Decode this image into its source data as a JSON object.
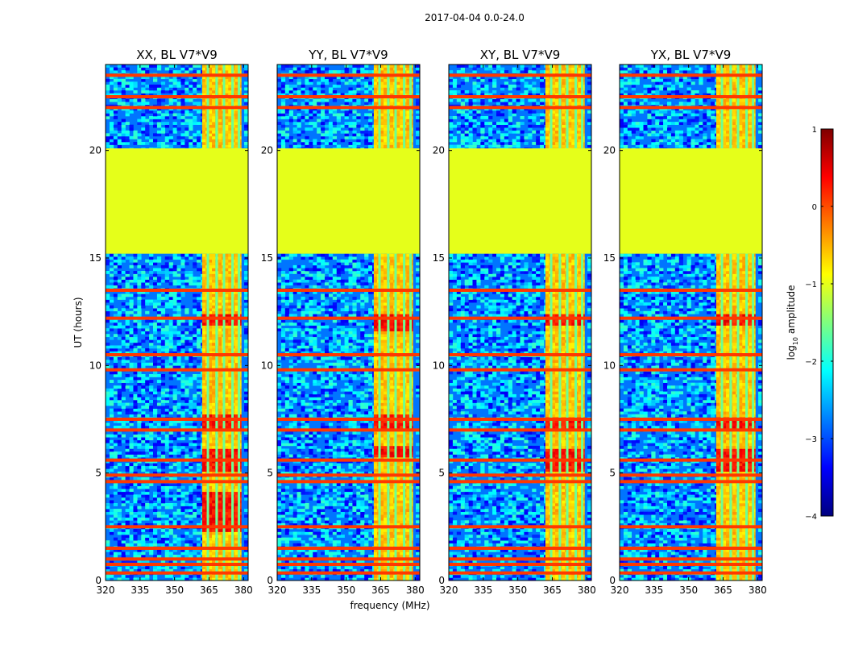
{
  "figure": {
    "suptitle": "2017-04-04 0.0-24.0",
    "xlabel": "frequency (MHz)",
    "ylabel": "UT (hours)"
  },
  "colorbar": {
    "label_prefix": "log",
    "label_sub": "10",
    "label_suffix": " amplitude",
    "ticks": [
      "1",
      "0",
      "−1",
      "−2",
      "−3",
      "−4"
    ],
    "range": [
      -4,
      1
    ],
    "colormap": "jet",
    "colors": [
      "#00007f",
      "#0000ff",
      "#007fff",
      "#00ffff",
      "#7fff7f",
      "#ffff00",
      "#ff7f00",
      "#ff0000",
      "#7f0000"
    ]
  },
  "chart_data": {
    "type": "heatmap",
    "xlim": [
      320,
      382
    ],
    "ylim": [
      0,
      24
    ],
    "xticks": [
      320,
      335,
      350,
      365,
      380
    ],
    "yticks": [
      0,
      5,
      10,
      15,
      20
    ],
    "gap_hours": [
      15.2,
      20.1
    ],
    "gap_value": -1.0,
    "background_value": -2.8,
    "active_band_mhz": [
      362,
      379
    ],
    "active_band_value": -0.6,
    "flagged_channels_mhz": [
      364.5,
      368.3,
      371.5,
      375.2,
      378.0
    ],
    "flagged_rows_hours": [
      0.35,
      0.75,
      1.0,
      1.5,
      2.5,
      4.6,
      4.9,
      5.6,
      7.0,
      7.5,
      9.8,
      10.5,
      12.2,
      13.5,
      22.0,
      22.5,
      23.5
    ],
    "panels": [
      {
        "title": "XX, BL V7*V9",
        "bright_hours": [
          [
            2.2,
            4.2
          ],
          [
            5.0,
            6.2
          ],
          [
            7.0,
            7.8
          ],
          [
            11.8,
            12.4
          ]
        ]
      },
      {
        "title": "YY, BL V7*V9",
        "bright_hours": [
          [
            5.7,
            6.3
          ],
          [
            7.0,
            7.8
          ],
          [
            11.5,
            12.5
          ]
        ]
      },
      {
        "title": "XY, BL V7*V9",
        "bright_hours": [
          [
            5.0,
            6.2
          ],
          [
            7.0,
            7.7
          ],
          [
            11.8,
            12.4
          ]
        ]
      },
      {
        "title": "YX, BL V7*V9",
        "bright_hours": [
          [
            5.0,
            6.2
          ],
          [
            7.0,
            7.7
          ],
          [
            11.8,
            12.4
          ]
        ]
      }
    ]
  }
}
